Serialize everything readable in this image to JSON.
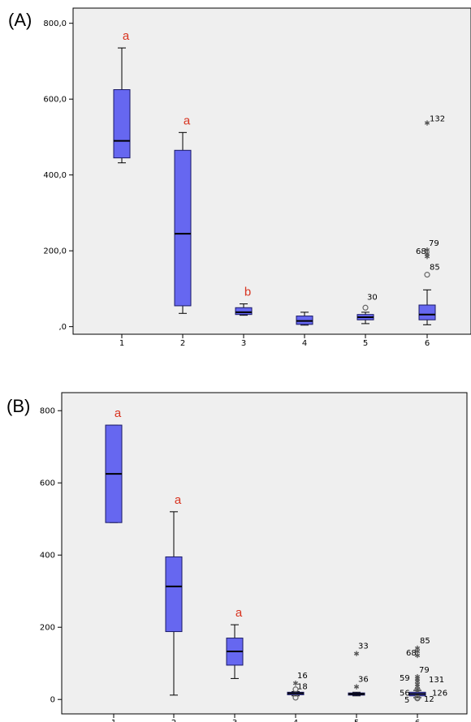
{
  "chart_data": [
    {
      "panel": "(A)",
      "type": "box",
      "title": "",
      "xlabel": "",
      "ylabel": "",
      "ylim": [
        -20,
        840
      ],
      "yticks": [
        0,
        200,
        400,
        600,
        800
      ],
      "ytick_labels": [
        ",0",
        "200,0",
        "400,0",
        "600,0",
        "800,0"
      ],
      "categories": [
        "1",
        "2",
        "3",
        "4",
        "5",
        "6"
      ],
      "colors": {
        "box": "#6667f0",
        "box_edge": "#1a1a66",
        "background": "#efefef"
      },
      "boxes": [
        {
          "category": "1",
          "whisker_low": 432,
          "q1": 445,
          "median": 490,
          "q3": 625,
          "whisker_high": 735,
          "annotation": "a"
        },
        {
          "category": "2",
          "whisker_low": 35,
          "q1": 55,
          "median": 245,
          "q3": 465,
          "whisker_high": 512,
          "annotation": "a"
        },
        {
          "category": "3",
          "whisker_low": 30,
          "q1": 32,
          "median": 38,
          "q3": 50,
          "whisker_high": 60,
          "annotation": "b"
        },
        {
          "category": "4",
          "whisker_low": 4,
          "q1": 6,
          "median": 15,
          "q3": 28,
          "whisker_high": 38,
          "annotation": ""
        },
        {
          "category": "5",
          "whisker_low": 8,
          "q1": 18,
          "median": 25,
          "q3": 32,
          "whisker_high": 38,
          "annotation": ""
        },
        {
          "category": "6",
          "whisker_low": 5,
          "q1": 18,
          "median": 32,
          "q3": 57,
          "whisker_high": 97,
          "annotation": ""
        }
      ],
      "outliers": [
        {
          "category": "5",
          "value": 50,
          "marker": "circle",
          "label": "30"
        },
        {
          "category": "6",
          "value": 537,
          "marker": "star",
          "label": "132"
        },
        {
          "category": "6",
          "value": 202,
          "marker": "star",
          "label": "79"
        },
        {
          "category": "6",
          "value": 192,
          "marker": "star",
          "label": "68"
        },
        {
          "category": "6",
          "value": 185,
          "marker": "star",
          "label": ""
        },
        {
          "category": "6",
          "value": 137,
          "marker": "circle",
          "label": "85"
        }
      ]
    },
    {
      "panel": "(B)",
      "type": "box",
      "title": "",
      "xlabel": "",
      "ylabel": "",
      "ylim": [
        -40,
        850
      ],
      "yticks": [
        0,
        200,
        400,
        600,
        800
      ],
      "ytick_labels": [
        "0",
        "200",
        "400",
        "600",
        "800"
      ],
      "categories": [
        "1",
        "2",
        "3",
        "4",
        "5",
        "6"
      ],
      "colors": {
        "box": "#6667f0",
        "box_edge": "#1a1a66",
        "background": "#efefef"
      },
      "boxes": [
        {
          "category": "1",
          "whisker_low": 490,
          "q1": 490,
          "median": 625,
          "q3": 760,
          "whisker_high": 760,
          "annotation": "a"
        },
        {
          "category": "2",
          "whisker_low": 12,
          "q1": 188,
          "median": 313,
          "q3": 395,
          "whisker_high": 520,
          "annotation": "a"
        },
        {
          "category": "3",
          "whisker_low": 58,
          "q1": 95,
          "median": 133,
          "q3": 170,
          "whisker_high": 207,
          "annotation": "a"
        },
        {
          "category": "4",
          "whisker_low": 10,
          "q1": 13,
          "median": 17,
          "q3": 20,
          "whisker_high": 22,
          "annotation": ""
        },
        {
          "category": "5",
          "whisker_low": 10,
          "q1": 12,
          "median": 15,
          "q3": 18,
          "whisker_high": 20,
          "annotation": ""
        },
        {
          "category": "6",
          "whisker_low": 5,
          "q1": 10,
          "median": 15,
          "q3": 20,
          "whisker_high": 25,
          "annotation": ""
        }
      ],
      "outliers": [
        {
          "category": "4",
          "value": 45,
          "marker": "star",
          "label": "16"
        },
        {
          "category": "4",
          "value": 28,
          "marker": "circle",
          "label": "18"
        },
        {
          "category": "4",
          "value": 5,
          "marker": "circle",
          "label": ""
        },
        {
          "category": "5",
          "value": 127,
          "marker": "star",
          "label": "33"
        },
        {
          "category": "5",
          "value": 35,
          "marker": "star",
          "label": "36"
        },
        {
          "category": "6",
          "value": 142,
          "marker": "star",
          "label": "85"
        },
        {
          "category": "6",
          "value": 133,
          "marker": "star",
          "label": ""
        },
        {
          "category": "6",
          "value": 122,
          "marker": "star",
          "label": "68"
        },
        {
          "category": "6",
          "value": 63,
          "marker": "star",
          "label": "79"
        },
        {
          "category": "6",
          "value": 57,
          "marker": "star",
          "label": "59"
        },
        {
          "category": "6",
          "value": 50,
          "marker": "star",
          "label": ""
        },
        {
          "category": "6",
          "value": 42,
          "marker": "star",
          "label": ""
        },
        {
          "category": "6",
          "value": 36,
          "marker": "star",
          "label": ""
        },
        {
          "category": "6",
          "value": 28,
          "marker": "circle",
          "label": "56"
        },
        {
          "category": "6",
          "value": 5,
          "marker": "circle",
          "label": "5"
        },
        {
          "category": "6",
          "value": 4,
          "marker": "circle",
          "label": ""
        },
        {
          "category": "6",
          "value": 3,
          "marker": "circle",
          "label": "12"
        },
        {
          "category": "6",
          "value": 57,
          "marker": "star",
          "label": "131"
        },
        {
          "category": "6",
          "value": 28,
          "marker": "star",
          "label": "126"
        }
      ]
    }
  ]
}
